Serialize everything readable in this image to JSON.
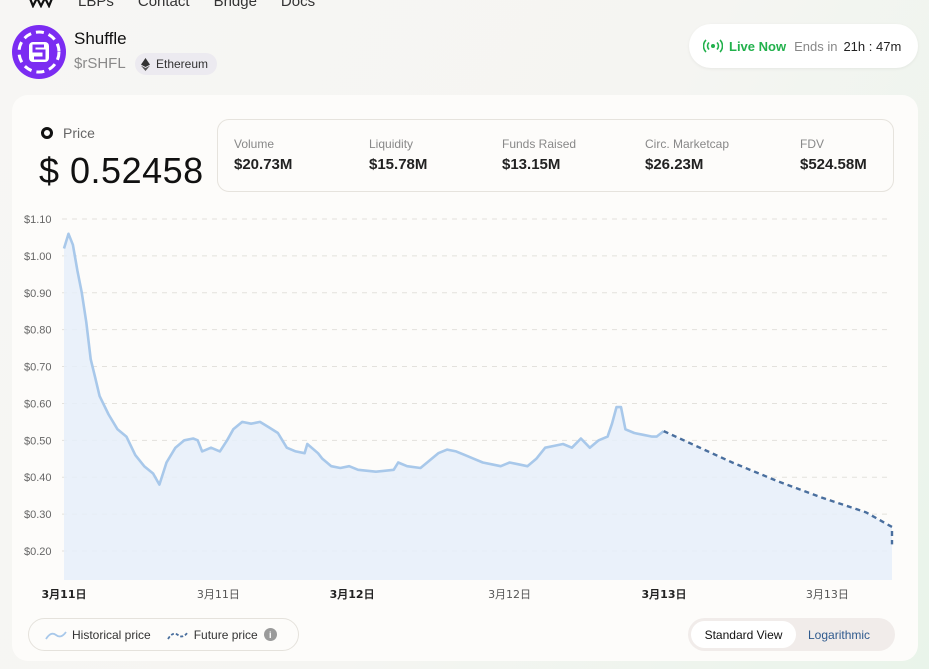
{
  "nav": {
    "links": [
      "LBPs",
      "Contact",
      "Bridge",
      "Docs"
    ]
  },
  "token": {
    "name": "Shuffle",
    "symbol": "$rSHFL",
    "chain": "Ethereum"
  },
  "live": {
    "status": "Live Now",
    "ends_prefix": "Ends in",
    "ends_time": "21h : 47m",
    "accent": "#22b14c"
  },
  "price": {
    "label": "Price",
    "value": "$ 0.52458"
  },
  "stats": [
    {
      "label": "Volume",
      "value": "$20.73M"
    },
    {
      "label": "Liquidity",
      "value": "$15.78M"
    },
    {
      "label": "Funds Raised",
      "value": "$13.15M"
    },
    {
      "label": "Circ. Marketcap",
      "value": "$26.23M"
    },
    {
      "label": "FDV",
      "value": "$524.58M"
    }
  ],
  "legend": {
    "historical": "Historical price",
    "future": "Future price"
  },
  "view_toggle": {
    "standard": "Standard View",
    "log": "Logarithmic",
    "active": "standard"
  },
  "chart_data": {
    "type": "area",
    "y_ticks": [
      "$1.10",
      "$1.00",
      "$0.90",
      "$0.80",
      "$0.70",
      "$0.60",
      "$0.50",
      "$0.40",
      "$0.30",
      "$0.20"
    ],
    "ylim": [
      0.17,
      1.1
    ],
    "x_tick_labels": [
      {
        "label": "3月11日",
        "bold": true
      },
      {
        "label": "3月11日",
        "bold": false
      },
      {
        "label": "3月12日",
        "bold": true
      },
      {
        "label": "3月12日",
        "bold": false
      },
      {
        "label": "3月13日",
        "bold": true
      },
      {
        "label": "3月13日",
        "bold": false
      }
    ],
    "x_tick_positions": [
      0,
      0.1733,
      0.3233,
      0.5,
      0.6733,
      0.8567
    ],
    "grid": "horizontal-dashed",
    "colors": {
      "historical": "#a8c8ea",
      "fill": "#e6eef9",
      "future": "#4a6f9e"
    },
    "historical": [
      [
        0.0,
        1.02
      ],
      [
        0.005,
        1.06
      ],
      [
        0.01,
        1.03
      ],
      [
        0.015,
        0.96
      ],
      [
        0.02,
        0.9
      ],
      [
        0.025,
        0.82
      ],
      [
        0.03,
        0.72
      ],
      [
        0.035,
        0.67
      ],
      [
        0.04,
        0.62
      ],
      [
        0.05,
        0.57
      ],
      [
        0.06,
        0.53
      ],
      [
        0.07,
        0.51
      ],
      [
        0.08,
        0.46
      ],
      [
        0.09,
        0.43
      ],
      [
        0.1,
        0.41
      ],
      [
        0.107,
        0.38
      ],
      [
        0.115,
        0.44
      ],
      [
        0.125,
        0.48
      ],
      [
        0.135,
        0.5
      ],
      [
        0.145,
        0.505
      ],
      [
        0.15,
        0.5
      ],
      [
        0.155,
        0.47
      ],
      [
        0.165,
        0.48
      ],
      [
        0.175,
        0.47
      ],
      [
        0.183,
        0.5
      ],
      [
        0.19,
        0.53
      ],
      [
        0.2,
        0.55
      ],
      [
        0.21,
        0.545
      ],
      [
        0.22,
        0.55
      ],
      [
        0.23,
        0.535
      ],
      [
        0.24,
        0.52
      ],
      [
        0.25,
        0.48
      ],
      [
        0.26,
        0.47
      ],
      [
        0.27,
        0.465
      ],
      [
        0.273,
        0.49
      ],
      [
        0.285,
        0.465
      ],
      [
        0.29,
        0.45
      ],
      [
        0.3,
        0.43
      ],
      [
        0.31,
        0.425
      ],
      [
        0.32,
        0.43
      ],
      [
        0.33,
        0.42
      ],
      [
        0.35,
        0.415
      ],
      [
        0.37,
        0.42
      ],
      [
        0.375,
        0.44
      ],
      [
        0.385,
        0.43
      ],
      [
        0.4,
        0.425
      ],
      [
        0.41,
        0.445
      ],
      [
        0.42,
        0.465
      ],
      [
        0.43,
        0.475
      ],
      [
        0.44,
        0.47
      ],
      [
        0.45,
        0.46
      ],
      [
        0.46,
        0.45
      ],
      [
        0.47,
        0.44
      ],
      [
        0.48,
        0.435
      ],
      [
        0.49,
        0.43
      ],
      [
        0.5,
        0.44
      ],
      [
        0.51,
        0.435
      ],
      [
        0.52,
        0.43
      ],
      [
        0.53,
        0.45
      ],
      [
        0.54,
        0.48
      ],
      [
        0.55,
        0.485
      ],
      [
        0.56,
        0.49
      ],
      [
        0.57,
        0.48
      ],
      [
        0.58,
        0.505
      ],
      [
        0.59,
        0.48
      ],
      [
        0.6,
        0.5
      ],
      [
        0.61,
        0.51
      ],
      [
        0.615,
        0.545
      ],
      [
        0.62,
        0.59
      ],
      [
        0.625,
        0.59
      ],
      [
        0.63,
        0.53
      ],
      [
        0.64,
        0.52
      ],
      [
        0.65,
        0.515
      ],
      [
        0.66,
        0.51
      ],
      [
        0.665,
        0.51
      ],
      [
        0.673,
        0.525
      ]
    ],
    "future": [
      [
        0.673,
        0.525
      ],
      [
        0.7,
        0.495
      ],
      [
        0.75,
        0.44
      ],
      [
        0.8,
        0.39
      ],
      [
        0.85,
        0.345
      ],
      [
        0.9,
        0.305
      ],
      [
        0.95,
        0.265
      ],
      [
        1.0,
        0.23
      ],
      [
        1.02,
        0.218
      ]
    ]
  }
}
